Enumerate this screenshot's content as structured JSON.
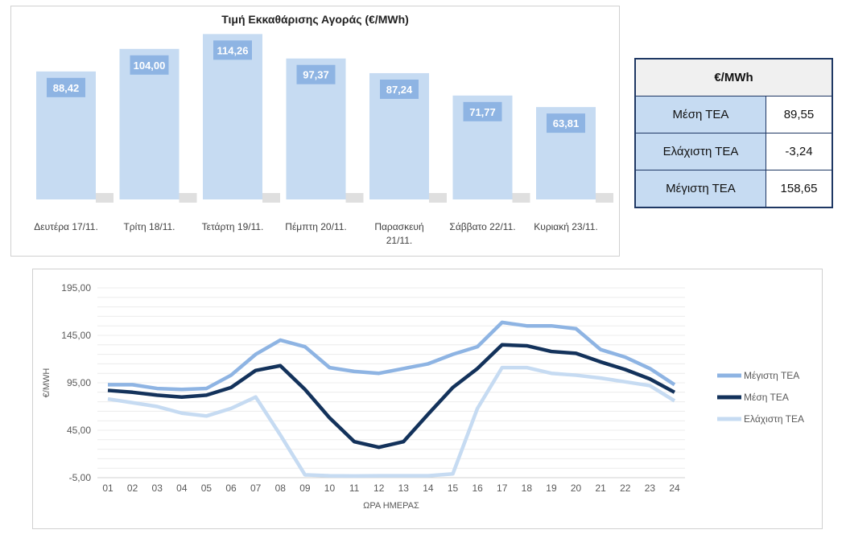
{
  "summary_table": {
    "header": "€/MWh",
    "rows": [
      {
        "label": "Μέση ΤΕΑ",
        "value": "89,55"
      },
      {
        "label": "Ελάχιστη ΤΕΑ",
        "value": "-3,24"
      },
      {
        "label": "Μέγιστη ΤΕΑ",
        "value": "158,65"
      }
    ]
  },
  "chart_data": [
    {
      "type": "bar",
      "title": "Τιμή Εκκαθάρισης Αγοράς (€/MWh)",
      "categories": [
        "Δευτέρα 17/11.",
        "Τρίτη 18/11.",
        "Τετάρτη 19/11.",
        "Πέμπτη 20/11.",
        "Παρασκευή 21/11.",
        "Σάββατο 22/11.",
        "Κυριακή 23/11."
      ],
      "values": [
        88.42,
        104.0,
        114.26,
        97.37,
        87.24,
        71.77,
        63.81
      ],
      "labels": [
        "88,42",
        "104,00",
        "114,26",
        "97,37",
        "87,24",
        "71,77",
        "63,81"
      ],
      "ylim": [
        0,
        120
      ],
      "color": "#c6dbf2",
      "label_color": "#8eb4e3"
    },
    {
      "type": "line",
      "xlabel": "ΩΡΑ ΗΜΕΡΑΣ",
      "ylabel": "€/MWH",
      "ylim": [
        -5,
        195
      ],
      "yticks": [
        "195,00",
        "145,00",
        "95,00",
        "45,00",
        "-5,00"
      ],
      "ytick_values": [
        195,
        145,
        95,
        45,
        -5
      ],
      "grid": true,
      "legend": "right",
      "x": [
        "01",
        "02",
        "03",
        "04",
        "05",
        "06",
        "07",
        "08",
        "09",
        "10",
        "11",
        "12",
        "13",
        "14",
        "15",
        "16",
        "17",
        "18",
        "19",
        "20",
        "21",
        "22",
        "23",
        "24"
      ],
      "series": [
        {
          "name": "Μέγιστη ΤΕΑ",
          "color": "#8eb4e3",
          "values": [
            93,
            93,
            89,
            88,
            89,
            103,
            125,
            140,
            133,
            111,
            107,
            105,
            110,
            115,
            125,
            133,
            158.65,
            155,
            155,
            152,
            130,
            122,
            110,
            93
          ]
        },
        {
          "name": "Μέση ΤΕΑ",
          "color": "#13325b",
          "values": [
            87,
            85,
            82,
            80,
            82,
            90,
            108,
            113,
            88,
            58,
            33,
            27,
            33,
            62,
            90,
            110,
            135,
            134,
            128,
            126,
            117,
            109,
            99,
            85
          ]
        },
        {
          "name": "Ελάχιστη ΤΕΑ",
          "color": "#c6dbf2",
          "values": [
            78,
            74,
            70,
            63,
            60,
            68,
            80,
            40,
            -2,
            -3,
            -3.24,
            -3,
            -3,
            -3,
            -1,
            68,
            111,
            111,
            105,
            103,
            100,
            96,
            92,
            76
          ]
        }
      ]
    }
  ]
}
